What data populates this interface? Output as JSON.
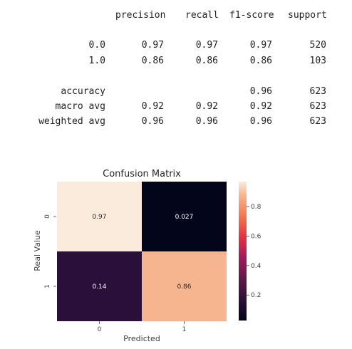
{
  "report": {
    "headers": [
      "precision",
      "recall",
      "f1-score",
      "support"
    ],
    "rows": [
      {
        "label": "0.0",
        "precision": "0.97",
        "recall": "0.97",
        "f1": "0.97",
        "support": "520"
      },
      {
        "label": "1.0",
        "precision": "0.86",
        "recall": "0.86",
        "f1": "0.86",
        "support": "103"
      },
      {
        "label": "accuracy",
        "precision": "",
        "recall": "",
        "f1": "0.96",
        "support": "623"
      },
      {
        "label": "macro avg",
        "precision": "0.92",
        "recall": "0.92",
        "f1": "0.92",
        "support": "623"
      },
      {
        "label": "weighted avg",
        "precision": "0.96",
        "recall": "0.96",
        "f1": "0.96",
        "support": "623"
      }
    ]
  },
  "chart_data": {
    "type": "heatmap",
    "title": "Confusion Matrix",
    "xlabel": "Predicted",
    "ylabel": "Real Value",
    "x_categories": [
      "0",
      "1"
    ],
    "y_categories": [
      "0",
      "1"
    ],
    "values": [
      [
        0.97,
        0.027
      ],
      [
        0.14,
        0.86
      ]
    ],
    "annotations": [
      [
        "0.97",
        "0.027"
      ],
      [
        "0.14",
        "0.86"
      ]
    ],
    "colorbar": {
      "range": [
        0.027,
        0.97
      ],
      "ticks": [
        0.2,
        0.4,
        0.6,
        0.8
      ],
      "tick_labels": [
        "0.2",
        "0.4",
        "0.6",
        "0.8"
      ],
      "colormap": "rocket"
    },
    "colors": {
      "cell_0_0": "#faebdd",
      "cell_0_1": "#03051a",
      "cell_1_0": "#2a0f3b",
      "cell_1_1": "#f6b48f"
    }
  }
}
